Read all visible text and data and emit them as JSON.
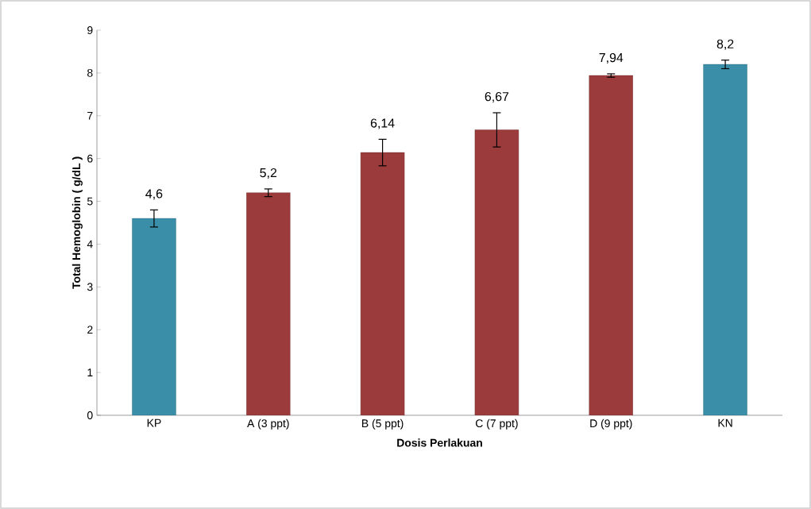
{
  "chart_data": {
    "type": "bar",
    "categories": [
      "KP",
      "A (3 ppt)",
      "B (5 ppt)",
      "C (7 ppt)",
      "D (9 ppt)",
      "KN"
    ],
    "values": [
      4.6,
      5.2,
      6.14,
      6.67,
      7.94,
      8.2
    ],
    "colors": [
      "#3a8ea8",
      "#9b3b3b",
      "#9b3b3b",
      "#9b3b3b",
      "#9b3b3b",
      "#3a8ea8"
    ],
    "errors": [
      0.2,
      0.09,
      0.31,
      0.4,
      0.04,
      0.1
    ],
    "value_labels": [
      "4,6",
      "5,2",
      "6,14",
      "6,67",
      "7,94",
      "8,2"
    ],
    "xlabel": "Dosis Perlakuan",
    "ylabel": "Total  Hemoglobin ( g/dL )",
    "ylim": [
      0,
      9
    ],
    "yticks": [
      0,
      1,
      2,
      3,
      4,
      5,
      6,
      7,
      8,
      9
    ]
  }
}
